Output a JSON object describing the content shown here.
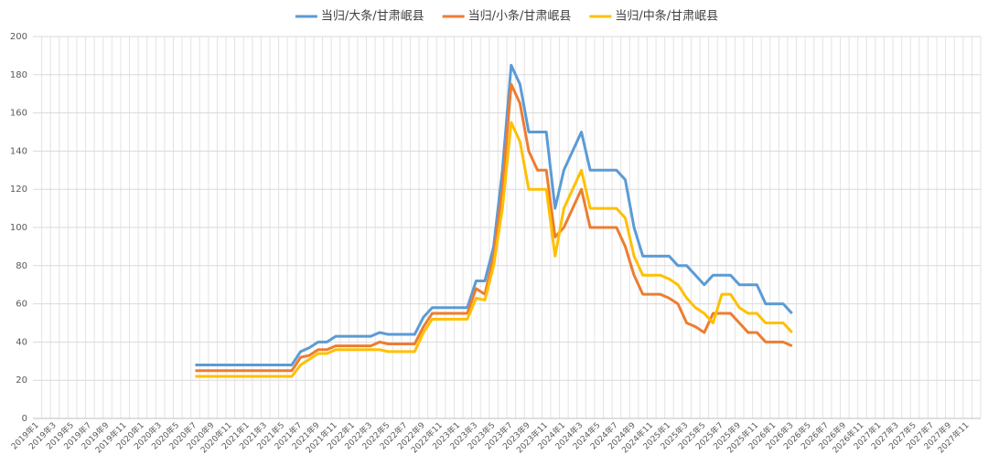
{
  "chart_data": {
    "type": "line",
    "categories": [
      "2019年1",
      null,
      "2019年3",
      null,
      "2019年5",
      null,
      "2019年7",
      null,
      "2019年9",
      null,
      "2019年11",
      null,
      "2020年1",
      null,
      "2020年3",
      null,
      "2020年5",
      null,
      "2020年7",
      null,
      "2020年9",
      null,
      "2020年11",
      null,
      "2021年1",
      null,
      "2021年3",
      null,
      "2021年5",
      null,
      "2021年7",
      null,
      "2021年9",
      null,
      "2021年11",
      null,
      "2022年1",
      null,
      "2022年3",
      null,
      "2022年5",
      null,
      "2022年7",
      null,
      "2022年9",
      null,
      "2022年11",
      null,
      "2023年1",
      null,
      "2023年3",
      null,
      "2023年5",
      null,
      "2023年7",
      null,
      "2023年9",
      null,
      "2023年11",
      null,
      "2024年1",
      null,
      "2024年3",
      null,
      "2024年5",
      null,
      "2024年7",
      null,
      "2024年9",
      null,
      "2024年11",
      null,
      "2025年1",
      null,
      "2025年3",
      null,
      "2025年5",
      null,
      "2025年7",
      null,
      "2025年9",
      null,
      "2025年11",
      null,
      "2026年1",
      null,
      "2026年3",
      null,
      "2026年5",
      null,
      "2026年7",
      null,
      "2026年9",
      null,
      "2026年11",
      null,
      "2027年1",
      null,
      "2027年3",
      null,
      "2027年5",
      null,
      "2027年7",
      null,
      "2027年9",
      null,
      "2027年11",
      null
    ],
    "series": [
      {
        "name": "当归/大条/甘肃岷县",
        "color": "#5b9bd5",
        "values": [
          null,
          null,
          null,
          null,
          null,
          null,
          null,
          null,
          null,
          null,
          null,
          null,
          null,
          null,
          null,
          null,
          null,
          null,
          28,
          28,
          28,
          28,
          28,
          28,
          28,
          28,
          28,
          28,
          28,
          28,
          35,
          37,
          40,
          40,
          43,
          43,
          43,
          43,
          43,
          45,
          44,
          44,
          44,
          44,
          53,
          58,
          58,
          58,
          58,
          58,
          72,
          72,
          90,
          130,
          185,
          175,
          150,
          150,
          150,
          110,
          130,
          140,
          150,
          130,
          130,
          130,
          130,
          125,
          100,
          85,
          85,
          85,
          85,
          80,
          80,
          75,
          70,
          75,
          75,
          75,
          70,
          70,
          70,
          60,
          60,
          60,
          55,
          null,
          null,
          null,
          null,
          null,
          null,
          null,
          null,
          null,
          null,
          null,
          null,
          null,
          null,
          null,
          null,
          null,
          null,
          null,
          null,
          null
        ]
      },
      {
        "name": "当归/小条/甘肃岷县",
        "color": "#ed7d31",
        "values": [
          null,
          null,
          null,
          null,
          null,
          null,
          null,
          null,
          null,
          null,
          null,
          null,
          null,
          null,
          null,
          null,
          null,
          null,
          25,
          25,
          25,
          25,
          25,
          25,
          25,
          25,
          25,
          25,
          25,
          25,
          32,
          33,
          36,
          36,
          38,
          38,
          38,
          38,
          38,
          40,
          39,
          39,
          39,
          39,
          48,
          55,
          55,
          55,
          55,
          55,
          68,
          65,
          85,
          120,
          175,
          165,
          140,
          130,
          130,
          95,
          100,
          110,
          120,
          100,
          100,
          100,
          100,
          90,
          75,
          65,
          65,
          65,
          63,
          60,
          50,
          48,
          45,
          55,
          55,
          55,
          50,
          45,
          45,
          40,
          40,
          40,
          38,
          null,
          null,
          null,
          null,
          null,
          null,
          null,
          null,
          null,
          null,
          null,
          null,
          null,
          null,
          null,
          null,
          null,
          null,
          null,
          null,
          null
        ]
      },
      {
        "name": "当归/中条/甘肃岷县",
        "color": "#ffc000",
        "values": [
          null,
          null,
          null,
          null,
          null,
          null,
          null,
          null,
          null,
          null,
          null,
          null,
          null,
          null,
          null,
          null,
          null,
          null,
          22,
          22,
          22,
          22,
          22,
          22,
          22,
          22,
          22,
          22,
          22,
          22,
          28,
          31,
          34,
          34,
          36,
          36,
          36,
          36,
          36,
          36,
          35,
          35,
          35,
          35,
          45,
          52,
          52,
          52,
          52,
          52,
          63,
          62,
          80,
          110,
          155,
          145,
          120,
          120,
          120,
          85,
          110,
          120,
          130,
          110,
          110,
          110,
          110,
          105,
          85,
          75,
          75,
          75,
          73,
          70,
          63,
          58,
          55,
          50,
          65,
          65,
          58,
          55,
          55,
          50,
          50,
          50,
          45,
          null,
          null,
          null,
          null,
          null,
          null,
          null,
          null,
          null,
          null,
          null,
          null,
          null,
          null,
          null,
          null,
          null,
          null,
          null,
          null,
          null
        ]
      }
    ],
    "ylim": [
      0,
      200
    ],
    "yticks": [
      0,
      20,
      40,
      60,
      80,
      100,
      120,
      140,
      160,
      180,
      200
    ],
    "grid": true,
    "legend": "top"
  }
}
